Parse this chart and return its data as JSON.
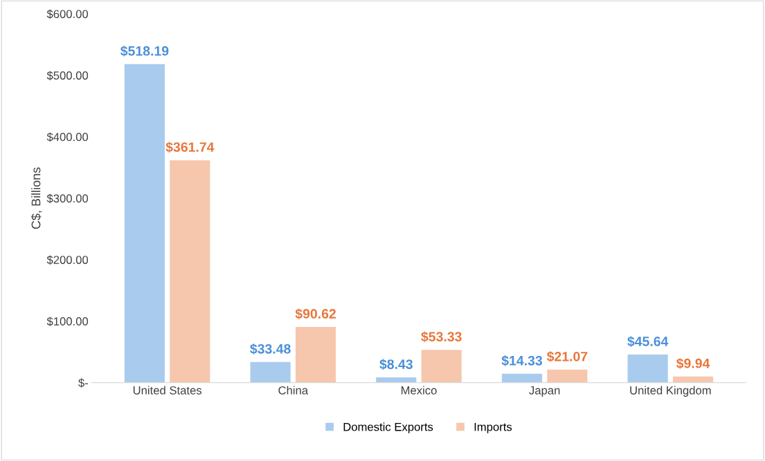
{
  "chart_data": {
    "type": "bar",
    "ylabel": "C$, Billions",
    "categories": [
      "United States",
      "China",
      "Mexico",
      "Japan",
      "United Kingdom"
    ],
    "series": [
      {
        "name": "Domestic Exports",
        "color": "#a9cbee",
        "values": [
          518.19,
          33.48,
          8.43,
          14.33,
          45.64
        ],
        "value_labels": [
          "$518.19",
          "$33.48",
          "$8.43",
          "$14.33",
          "$45.64"
        ]
      },
      {
        "name": "Imports",
        "color": "#f6c7ad",
        "values": [
          361.74,
          90.62,
          53.33,
          21.07,
          9.94
        ],
        "value_labels": [
          "$361.74",
          "$90.62",
          "$53.33",
          "$21.07",
          "$9.94"
        ]
      }
    ],
    "ylim": [
      0,
      600
    ],
    "yticks": [
      {
        "value": 0,
        "label": "$-"
      },
      {
        "value": 100,
        "label": "$100.00"
      },
      {
        "value": 200,
        "label": "$200.00"
      },
      {
        "value": 300,
        "label": "$300.00"
      },
      {
        "value": 400,
        "label": "$400.00"
      },
      {
        "value": 500,
        "label": "$500.00"
      },
      {
        "value": 600,
        "label": "$600.00"
      }
    ],
    "grid": false,
    "legend": "bottom"
  }
}
